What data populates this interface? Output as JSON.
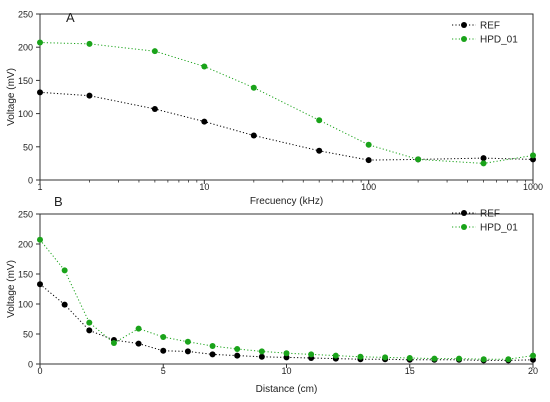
{
  "chart_data": [
    {
      "type": "scatter",
      "panel_label": "A",
      "xlabel": "Frecuency (kHz)",
      "ylabel": "Voltage (mV)",
      "xscale": "log",
      "xlim": [
        1,
        1000
      ],
      "ylim": [
        0,
        250
      ],
      "xticks": [
        1,
        10,
        100,
        1000
      ],
      "yticks": [
        0,
        50,
        100,
        150,
        200,
        250
      ],
      "grid": false,
      "legend_position": "top-right",
      "series": [
        {
          "name": "REF",
          "color": "#000000",
          "x": [
            1,
            2,
            5,
            10,
            20,
            50,
            100,
            200,
            500,
            1000
          ],
          "y": [
            132,
            127,
            107,
            88,
            67,
            44,
            30,
            31,
            33,
            31
          ]
        },
        {
          "name": "HPD_01",
          "color": "#1aa31a",
          "x": [
            1,
            2,
            5,
            10,
            20,
            50,
            100,
            200,
            500,
            1000
          ],
          "y": [
            207,
            205,
            194,
            171,
            139,
            90,
            53,
            31,
            25,
            37
          ]
        }
      ]
    },
    {
      "type": "scatter",
      "panel_label": "B",
      "xlabel": "Distance (cm)",
      "ylabel": "Voltage (mV)",
      "xscale": "linear",
      "xlim": [
        0,
        20
      ],
      "ylim": [
        0,
        250
      ],
      "xticks": [
        0,
        5,
        10,
        15,
        20
      ],
      "yticks": [
        0,
        50,
        100,
        150,
        200,
        250
      ],
      "grid": false,
      "legend_position": "top-right",
      "series": [
        {
          "name": "REF",
          "color": "#000000",
          "x": [
            0,
            1,
            2,
            3,
            4,
            5,
            6,
            7,
            8,
            9,
            10,
            11,
            12,
            13,
            14,
            15,
            16,
            17,
            18,
            19,
            20
          ],
          "y": [
            133,
            99,
            56,
            40,
            34,
            22,
            21,
            16,
            14,
            12,
            11,
            10,
            9,
            8,
            8,
            7,
            7,
            7,
            6,
            6,
            7
          ]
        },
        {
          "name": "HPD_01",
          "color": "#1aa31a",
          "x": [
            0,
            1,
            2,
            3,
            4,
            5,
            6,
            7,
            8,
            9,
            10,
            11,
            12,
            13,
            14,
            15,
            16,
            17,
            18,
            19,
            20
          ],
          "y": [
            207,
            156,
            69,
            35,
            59,
            45,
            37,
            30,
            25,
            21,
            18,
            16,
            14,
            12,
            11,
            10,
            9,
            9,
            8,
            8,
            14
          ]
        }
      ]
    }
  ]
}
